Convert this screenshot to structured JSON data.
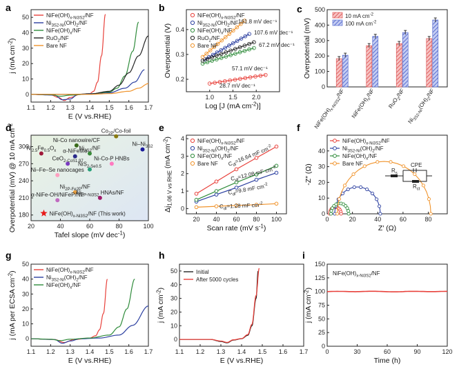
{
  "panel_labels": [
    "a",
    "b",
    "c",
    "d",
    "e",
    "f",
    "g",
    "h",
    "i"
  ],
  "chart_data": [
    {
      "panel": "a",
      "type": "line",
      "xlabel": "E (V vs.RHE)",
      "ylabel": "j (mA cm⁻²)",
      "xlim": [
        1.1,
        1.7
      ],
      "ylim": [
        -5,
        55
      ],
      "xticks": [
        "1.1",
        "1.2",
        "1.3",
        "1.4",
        "1.5",
        "1.6",
        "1.7"
      ],
      "yticks": [
        "0",
        "10",
        "20",
        "30",
        "40",
        "50"
      ],
      "series": [
        {
          "name": "NiFe(OH)x-Ni3S2/NF",
          "color": "#e8403a",
          "x": [
            1.1,
            1.2,
            1.24,
            1.27,
            1.3,
            1.35,
            1.4,
            1.42,
            1.44,
            1.46,
            1.48
          ],
          "y": [
            0,
            -0.3,
            -2,
            -4,
            -2,
            0,
            0.5,
            2,
            8,
            25,
            52
          ]
        },
        {
          "name": "Ni3S2-Ni(OH)2/NF",
          "color": "#2b3fa0",
          "x": [
            1.1,
            1.22,
            1.26,
            1.3,
            1.34,
            1.4,
            1.5,
            1.58,
            1.63,
            1.68
          ],
          "y": [
            0,
            -0.5,
            -3.5,
            -3,
            0,
            0.5,
            1,
            4,
            8,
            16
          ]
        },
        {
          "name": "NiFe(OH)x/NF",
          "color": "#2e8b3a",
          "x": [
            1.1,
            1.2,
            1.25,
            1.3,
            1.4,
            1.5,
            1.54,
            1.58,
            1.62,
            1.65
          ],
          "y": [
            0,
            -0.2,
            -1.2,
            -0.5,
            0.3,
            1.5,
            4,
            12,
            28,
            47
          ]
        },
        {
          "name": "RuO2/NF",
          "color": "#222222",
          "x": [
            1.1,
            1.3,
            1.4,
            1.5,
            1.55,
            1.6,
            1.65,
            1.7
          ],
          "y": [
            0,
            0,
            0.2,
            2,
            6,
            14,
            25,
            38
          ]
        },
        {
          "name": "Bare NF",
          "color": "#f0932b",
          "x": [
            1.1,
            1.3,
            1.4,
            1.5,
            1.6,
            1.65,
            1.7
          ],
          "y": [
            0,
            0,
            0,
            0.5,
            2,
            4,
            7
          ]
        }
      ]
    },
    {
      "panel": "b",
      "type": "scatter",
      "xlabel": "Log [J (mA cm⁻²)]",
      "ylabel": "Overpotential (V)",
      "xlim": [
        0.5,
        2.5
      ],
      "ylim": [
        0.15,
        0.48
      ],
      "xticks": [
        "1.0",
        "1.5",
        "2.0"
      ],
      "annotations": [
        "161.8 mV dec⁻¹",
        "107.6 mV dec⁻¹",
        "67.2 mV dec⁻¹",
        "57.1 mV dec⁻¹",
        "28.7 mV dec⁻¹"
      ],
      "series": [
        {
          "name": "NiFe(OH)x-Ni3S2/NF",
          "color": "#e8403a",
          "x0": 1.0,
          "x1": 2.2,
          "y0": 0.183,
          "slope": 0.0287
        },
        {
          "name": "Ni3S2-Ni(OH)2/NF",
          "color": "#2b3fa0",
          "x0": 0.9,
          "x1": 1.85,
          "y0": 0.28,
          "slope": 0.1076
        },
        {
          "name": "NiFe(OH)x/NF",
          "color": "#2e8b3a",
          "x0": 0.85,
          "x1": 1.95,
          "y0": 0.263,
          "slope": 0.0571
        },
        {
          "name": "RuO2/NF",
          "color": "#222222",
          "x0": 0.85,
          "x1": 1.95,
          "y0": 0.275,
          "slope": 0.0672
        },
        {
          "name": "Bare NF",
          "color": "#f0932b",
          "x0": 0.85,
          "x1": 1.75,
          "y0": 0.29,
          "slope": 0.1618
        }
      ]
    },
    {
      "panel": "c",
      "type": "bar",
      "ylabel": "Overpotential (mV)",
      "ylim": [
        0,
        500
      ],
      "yticks": [
        "0",
        "100",
        "200",
        "300",
        "400",
        "500"
      ],
      "categories": [
        "NiFe(OH)x-Ni3S2/NF",
        "NiFe(OH)x/NF",
        "RuO2/NF",
        "Ni3S2-Ni(OH)2/NF"
      ],
      "series": [
        {
          "name": "10 mA cm⁻²",
          "color": "#e06060",
          "values": [
            183,
            267,
            281,
            313
          ]
        },
        {
          "name": "100 mA cm⁻²",
          "color": "#5a6fd0",
          "values": [
            205,
            327,
            352,
            433
          ]
        }
      ]
    },
    {
      "panel": "d",
      "type": "scatter",
      "xlabel": "Tafel slope (mV dec⁻¹)",
      "ylabel": "Overpotential (mV) @ 10 mA cm⁻²",
      "xlim": [
        20,
        100
      ],
      "ylim": [
        170,
        320
      ],
      "xticks": [
        "20",
        "40",
        "60",
        "80",
        "100"
      ],
      "yticks": [
        "180",
        "210",
        "240",
        "270",
        "300"
      ],
      "points": [
        {
          "label": "Ni-Co nanowire/CF",
          "x": 51,
          "y": 302,
          "color": "#3a6b1a"
        },
        {
          "label": "Co2P/Co-foil",
          "x": 78,
          "y": 318,
          "color": "#8a7a10"
        },
        {
          "label": "Ni2.5Fe0.5Ox",
          "x": 27,
          "y": 288,
          "color": "#a01a3a"
        },
        {
          "label": "α-NiFeMo",
          "x": 50,
          "y": 283,
          "color": "#2a2a8a"
        },
        {
          "label": "Ni3S2/NF",
          "x": 60,
          "y": 288,
          "color": "#3a8a3a"
        },
        {
          "label": "Ni–Ni3S2",
          "x": 96,
          "y": 295,
          "color": "#1a1a9a"
        },
        {
          "label": "CeO2-CoS1.97",
          "x": 45,
          "y": 270,
          "color": "#7a3ac0"
        },
        {
          "label": "NiS2-Se0.5",
          "x": 60,
          "y": 260,
          "color": "#2aa07a"
        },
        {
          "label": "Ni-Co-P HNBs",
          "x": 75,
          "y": 270,
          "color": "#ff7ac0"
        },
        {
          "label": "Ni–Fe–Se nanocages",
          "x": 38,
          "y": 250,
          "color": "#ffa0c0"
        },
        {
          "label": "Ni2P-Fe2P/NF",
          "x": 50,
          "y": 220,
          "color": "#e8a040"
        },
        {
          "label": "α-NiFe-OH/NiFeP/NF",
          "x": 38,
          "y": 206,
          "color": "#c06ac0"
        },
        {
          "label": "Ni2P-Ni3S2 HNAs/NF",
          "x": 67,
          "y": 210,
          "color": "#a01a6a"
        }
      ],
      "this_work": {
        "label": "NiFe(OH)x-Ni3S2/NF (This work)",
        "x": 28.7,
        "y": 183,
        "color": "#e81a1a"
      }
    },
    {
      "panel": "e",
      "type": "line",
      "xlabel": "Scan rate (mV s⁻¹)",
      "ylabel": "Δj1.06 V vs RHE (mA cm⁻²)",
      "xlim": [
        10,
        110
      ],
      "ylim": [
        -0.3,
        4.2
      ],
      "xticks": [
        "20",
        "40",
        "60",
        "80",
        "100"
      ],
      "yticks": [
        "0",
        "1",
        "2",
        "3",
        "4"
      ],
      "annotations": [
        "Cdl=16.64 mF cm⁻²",
        "Cdl=12.08 mF cm⁻²",
        "Cdl=9.8 mF cm⁻²",
        "Cdl=1.28 mF cm⁻²"
      ],
      "x": [
        20,
        40,
        60,
        80,
        100
      ],
      "series": [
        {
          "name": "NiFe(OH)x-Ni3S2/NF",
          "color": "#e8403a",
          "values": [
            0.85,
            1.55,
            2.25,
            2.9,
            3.55
          ]
        },
        {
          "name": "Ni3S2-Ni(OH)2/NF",
          "color": "#2b3fa0",
          "values": [
            0.4,
            0.8,
            1.2,
            1.65,
            2.05
          ]
        },
        {
          "name": "NiFe(OH)x/NF",
          "color": "#2e8b3a",
          "values": [
            0.5,
            1.0,
            1.5,
            1.95,
            2.45
          ]
        },
        {
          "name": "Bare NF",
          "color": "#f0932b",
          "values": [
            0.08,
            0.13,
            0.18,
            0.22,
            0.28
          ]
        }
      ]
    },
    {
      "panel": "f",
      "type": "scatter",
      "xlabel": "Z′ (Ω)",
      "ylabel": "-Z″ (Ω)",
      "xlim": [
        0,
        95
      ],
      "ylim": [
        0,
        50
      ],
      "xticks": [
        "0",
        "20",
        "40",
        "60",
        "80"
      ],
      "yticks": [
        "0",
        "10",
        "20",
        "30",
        "40"
      ],
      "circuit": [
        "Rs",
        "CPE",
        "Rct"
      ],
      "series": [
        {
          "name": "NiFe(OH)x-Ni3S2/NF",
          "color": "#e8403a",
          "center": 6.5,
          "radius": 4.5
        },
        {
          "name": "Ni3S2-Ni(OH)2/NF",
          "color": "#2b3fa0",
          "center": 24,
          "radius": 18
        },
        {
          "name": "NiFe(OH)x/NF",
          "color": "#2e8b3a",
          "center": 10,
          "radius": 7
        },
        {
          "name": "Bare NF",
          "color": "#f0932b",
          "center": 45,
          "radius": 37,
          "flatten": 0.9
        }
      ]
    },
    {
      "panel": "g",
      "type": "line",
      "xlabel": "E (V vs.RHE)",
      "ylabel": "j (mA per ECSA cm⁻²)",
      "xlim": [
        1.1,
        1.7
      ],
      "ylim": [
        -5,
        50
      ],
      "xticks": [
        "1.1",
        "1.2",
        "1.3",
        "1.4",
        "1.5",
        "1.6",
        "1.7"
      ],
      "yticks": [
        "0",
        "10",
        "20",
        "30",
        "40",
        "50"
      ],
      "series": [
        {
          "name": "NiFe(OH)x-Ni3S2/NF",
          "color": "#e8403a",
          "x": [
            1.1,
            1.22,
            1.27,
            1.32,
            1.4,
            1.43,
            1.45,
            1.47,
            1.49
          ],
          "y": [
            0,
            -0.5,
            -2.5,
            -0.5,
            0.5,
            2,
            6,
            17,
            40
          ]
        },
        {
          "name": "Ni3S2-Ni(OH)2/NF",
          "color": "#2b3fa0",
          "x": [
            1.1,
            1.22,
            1.26,
            1.3,
            1.35,
            1.45,
            1.55,
            1.62,
            1.7
          ],
          "y": [
            0,
            -0.5,
            -3,
            -1.5,
            0,
            0.5,
            2.5,
            9,
            22
          ]
        },
        {
          "name": "NiFe(OH)x/NF",
          "color": "#2e8b3a",
          "x": [
            1.1,
            1.2,
            1.25,
            1.3,
            1.4,
            1.5,
            1.55,
            1.59,
            1.63
          ],
          "y": [
            0,
            -0.3,
            -1.2,
            -0.3,
            0.5,
            2.5,
            8,
            20,
            40
          ]
        }
      ]
    },
    {
      "panel": "h",
      "type": "line",
      "xlabel": "E (V vs.RHE)",
      "ylabel": "j (mA cm⁻²)",
      "xlim": [
        1.1,
        1.7
      ],
      "ylim": [
        -5,
        55
      ],
      "xticks": [
        "1.1",
        "1.2",
        "1.3",
        "1.4",
        "1.5",
        "1.6",
        "1.7"
      ],
      "yticks": [
        "0",
        "10",
        "20",
        "30",
        "40",
        "50"
      ],
      "series": [
        {
          "name": "Initial",
          "color": "#222222",
          "x": [
            1.1,
            1.25,
            1.3,
            1.33,
            1.36,
            1.4,
            1.43,
            1.45,
            1.47,
            1.48
          ],
          "y": [
            0,
            0,
            -1.5,
            -2.5,
            -0.5,
            0.5,
            3,
            10,
            30,
            50
          ]
        },
        {
          "name": "After 5000 cycles",
          "color": "#e8403a",
          "x": [
            1.1,
            1.25,
            1.3,
            1.33,
            1.36,
            1.4,
            1.43,
            1.45,
            1.47,
            1.485
          ],
          "y": [
            0,
            0,
            -1.2,
            -2.2,
            -0.3,
            0.6,
            3.5,
            11,
            32,
            52
          ]
        }
      ]
    },
    {
      "panel": "i",
      "type": "line",
      "title": "NiFe(OH)x-Ni3S2/NF",
      "xlabel": "Time (h)",
      "ylabel": "j (mA cm⁻²)",
      "xlim": [
        0,
        120
      ],
      "ylim": [
        0,
        150
      ],
      "xticks": [
        "0",
        "30",
        "60",
        "90",
        "120"
      ],
      "yticks": [
        "0",
        "25",
        "50",
        "75",
        "100",
        "125",
        "150"
      ],
      "series": [
        {
          "name": "NiFe(OH)x-Ni3S2/NF",
          "color": "#e8403a",
          "x": [
            0,
            15,
            30,
            45,
            60,
            75,
            90,
            105,
            120
          ],
          "y": [
            100,
            99.5,
            100.3,
            99.8,
            100.1,
            99.6,
            100.2,
            99.7,
            100
          ]
        }
      ]
    }
  ]
}
